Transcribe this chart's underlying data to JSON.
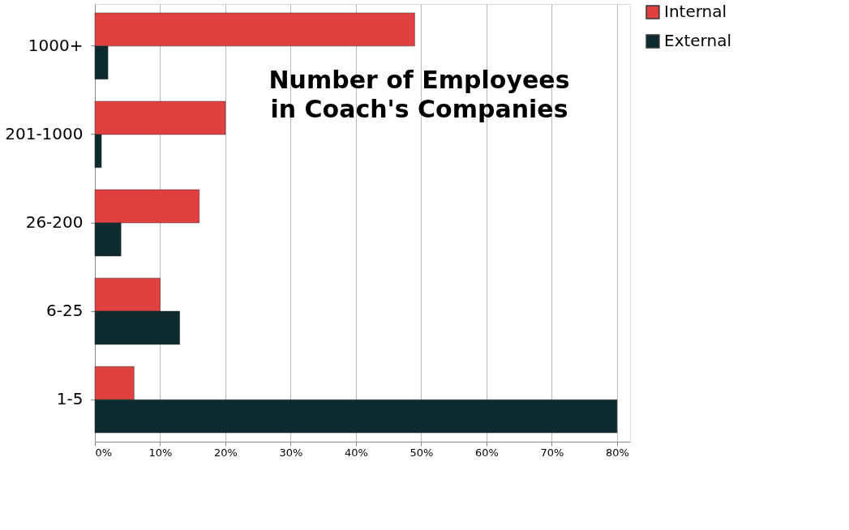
{
  "chart_data": {
    "type": "bar",
    "orientation": "horizontal",
    "title": "Number of Employees\nin Coach's Companies",
    "categories": [
      "1000+",
      "201-1000",
      "26-200",
      "6-25",
      "1-5"
    ],
    "series": [
      {
        "name": "Internal",
        "color": "#e04040",
        "values": [
          49,
          20,
          16,
          10,
          6
        ]
      },
      {
        "name": "External",
        "color": "#0d2a2e",
        "values": [
          2,
          1,
          4,
          13,
          80
        ]
      }
    ],
    "xlim": [
      0,
      82
    ],
    "xticks": [
      {
        "value": 0,
        "label": "0%"
      },
      {
        "value": 10,
        "label": "10%"
      },
      {
        "value": 20,
        "label": "20%"
      },
      {
        "value": 30,
        "label": "30%"
      },
      {
        "value": 40,
        "label": "40%"
      },
      {
        "value": 50,
        "label": "50%"
      },
      {
        "value": 60,
        "label": "60%"
      },
      {
        "value": 70,
        "label": "70%"
      },
      {
        "value": 80,
        "label": "80%"
      }
    ],
    "grid": "x",
    "legend": "right"
  }
}
